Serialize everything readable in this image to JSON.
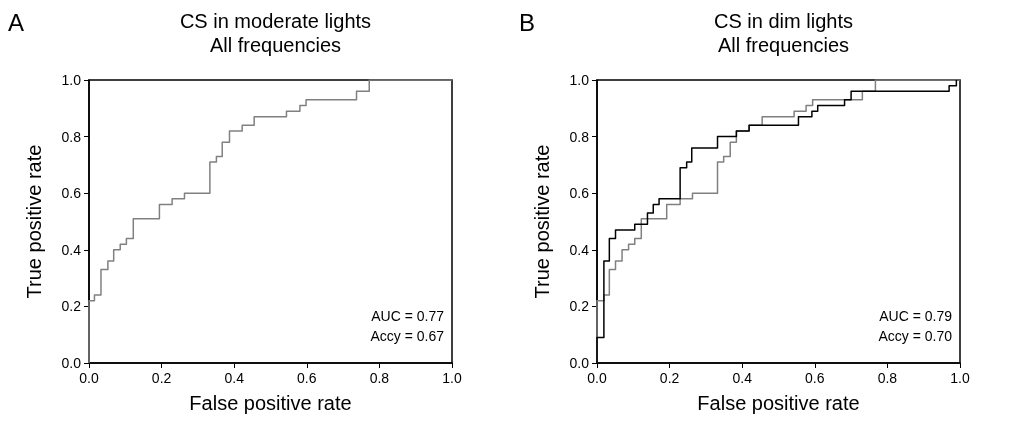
{
  "chart_data": [
    {
      "type": "step",
      "title": "CS in moderate lights",
      "subtitle": "All frequencies",
      "xlabel": "False positive rate",
      "ylabel": "True positive rate",
      "annotations": [
        "A",
        "AUC = 0.77",
        "Accy = 0.67"
      ],
      "xlim": [
        0,
        1
      ],
      "ylim": [
        0,
        1
      ],
      "xticks": [
        {
          "value": 0,
          "label": "0.0"
        },
        {
          "value": 0.2,
          "label": "0.2"
        },
        {
          "value": 0.4,
          "label": "0.4"
        },
        {
          "value": 0.6,
          "label": "0.6"
        },
        {
          "value": 0.8,
          "label": "0.8"
        },
        {
          "value": 1,
          "label": "1.0"
        }
      ],
      "yticks": [
        {
          "value": 0,
          "label": "0.0"
        },
        {
          "value": 0.2,
          "label": "0.2"
        },
        {
          "value": 0.4,
          "label": "0.4"
        },
        {
          "value": 0.6,
          "label": "0.6"
        },
        {
          "value": 0.8,
          "label": "0.8"
        },
        {
          "value": 1,
          "label": "1.0"
        }
      ],
      "grid": false,
      "marker": "none",
      "line_style": "solid",
      "series": [
        {
          "color": "#808080",
          "x": [
            0,
            0,
            0.015,
            0.033,
            0.052,
            0.068,
            0.086,
            0.103,
            0.122,
            0.194,
            0.229,
            0.263,
            0.333,
            0.351,
            0.367,
            0.387,
            0.422,
            0.455,
            0.544,
            0.581,
            0.598,
            0.737,
            0.772,
            1
          ],
          "values": [
            0,
            0.22,
            0.24,
            0.33,
            0.36,
            0.4,
            0.42,
            0.44,
            0.51,
            0.56,
            0.58,
            0.6,
            0.71,
            0.73,
            0.78,
            0.82,
            0.84,
            0.87,
            0.89,
            0.91,
            0.93,
            0.96,
            1,
            1
          ]
        }
      ]
    },
    {
      "type": "step",
      "title": "CS in dim lights",
      "subtitle": "All frequencies",
      "xlabel": "False positive rate",
      "ylabel": "True positive rate",
      "annotations": [
        "B",
        "AUC = 0.79",
        "Accy = 0.70"
      ],
      "xlim": [
        0,
        1
      ],
      "ylim": [
        0,
        1
      ],
      "xticks": [
        {
          "value": 0,
          "label": "0.0"
        },
        {
          "value": 0.2,
          "label": "0.2"
        },
        {
          "value": 0.4,
          "label": "0.4"
        },
        {
          "value": 0.6,
          "label": "0.6"
        },
        {
          "value": 0.8,
          "label": "0.8"
        },
        {
          "value": 1,
          "label": "1.0"
        }
      ],
      "yticks": [
        {
          "value": 0,
          "label": "0.0"
        },
        {
          "value": 0.2,
          "label": "0.2"
        },
        {
          "value": 0.4,
          "label": "0.4"
        },
        {
          "value": 0.6,
          "label": "0.6"
        },
        {
          "value": 0.8,
          "label": "0.8"
        },
        {
          "value": 1,
          "label": "1.0"
        }
      ],
      "grid": false,
      "marker": "none",
      "line_style": "solid",
      "series": [
        {
          "color": "#808080",
          "x": [
            0,
            0,
            0.019,
            0.034,
            0.051,
            0.069,
            0.087,
            0.104,
            0.122,
            0.192,
            0.229,
            0.263,
            0.332,
            0.349,
            0.367,
            0.384,
            0.419,
            0.455,
            0.543,
            0.576,
            0.594,
            0.731,
            0.767,
            1
          ],
          "values": [
            0,
            0.22,
            0.24,
            0.33,
            0.36,
            0.4,
            0.42,
            0.44,
            0.51,
            0.56,
            0.58,
            0.6,
            0.71,
            0.73,
            0.78,
            0.82,
            0.84,
            0.87,
            0.89,
            0.91,
            0.93,
            0.96,
            1,
            1
          ]
        },
        {
          "color": "#000000",
          "x": [
            0,
            0,
            0.019,
            0.034,
            0.051,
            0.104,
            0.139,
            0.155,
            0.171,
            0.229,
            0.247,
            0.261,
            0.332,
            0.384,
            0.419,
            0.555,
            0.592,
            0.608,
            0.682,
            0.7,
            0.97,
            0.99
          ],
          "values": [
            0,
            0.09,
            0.36,
            0.44,
            0.47,
            0.49,
            0.53,
            0.56,
            0.58,
            0.69,
            0.71,
            0.76,
            0.8,
            0.82,
            0.84,
            0.87,
            0.89,
            0.91,
            0.93,
            0.96,
            0.98,
            1
          ]
        }
      ]
    }
  ]
}
